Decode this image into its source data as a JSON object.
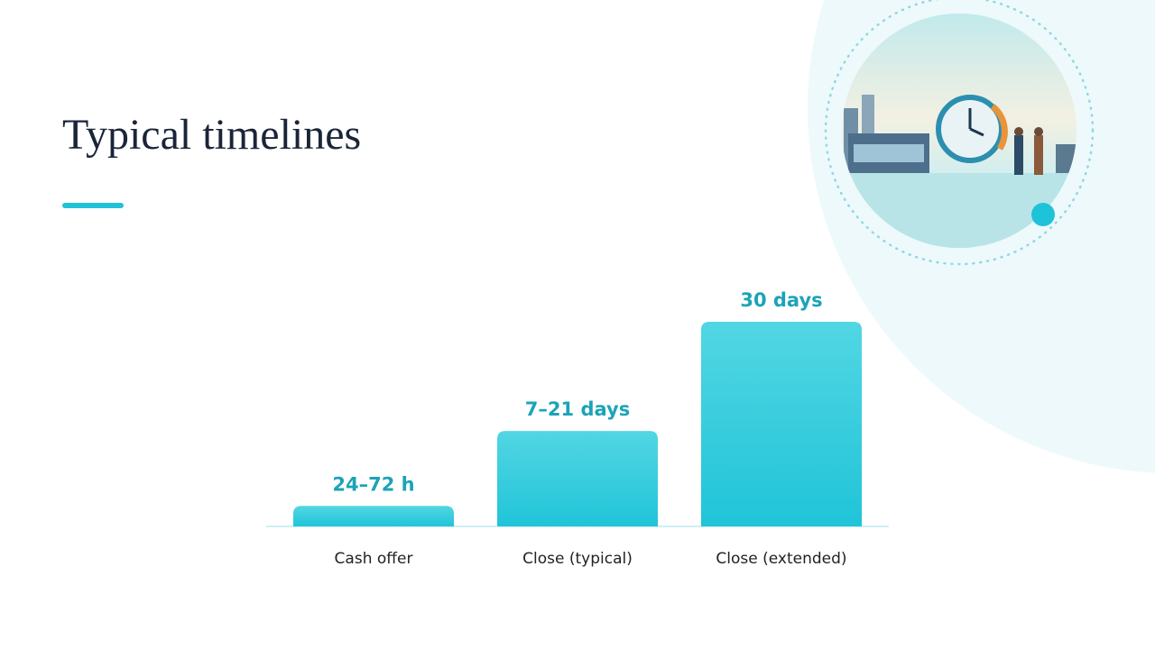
{
  "chart_data": {
    "type": "bar",
    "title": "Typical timelines",
    "categories": [
      "Cash offer",
      "Close (typical)",
      "Close (extended)"
    ],
    "values": [
      3,
      14,
      30
    ],
    "value_labels": [
      "24–72 h",
      "7–21 days",
      "30 days"
    ],
    "color": "#22c5d9",
    "ylim": [
      0,
      30
    ]
  }
}
